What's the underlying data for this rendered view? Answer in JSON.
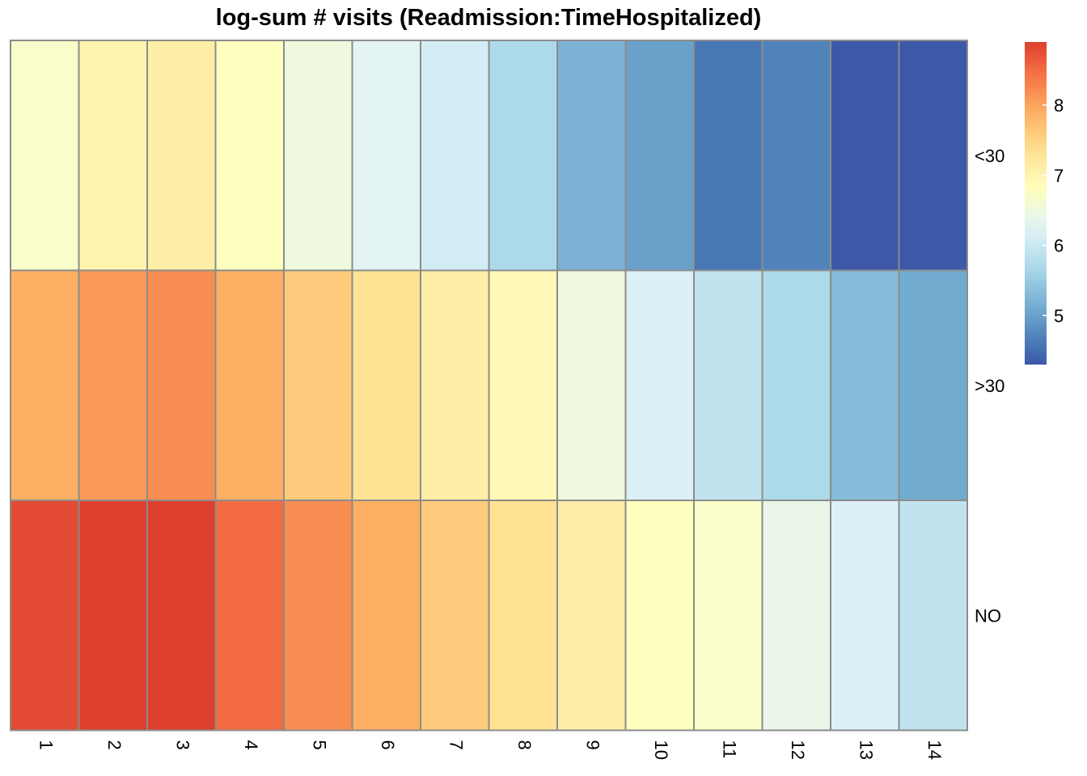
{
  "chart_data": {
    "type": "heatmap",
    "title": "log-sum # visits (Readmission:TimeHospitalized)",
    "columns": [
      "1",
      "2",
      "3",
      "4",
      "5",
      "6",
      "7",
      "8",
      "9",
      "10",
      "11",
      "12",
      "13",
      "14"
    ],
    "rows": [
      "<30",
      ">30",
      "NO"
    ],
    "values": [
      [
        6.7,
        7.0,
        7.1,
        6.8,
        6.5,
        6.3,
        6.1,
        5.7,
        5.2,
        5.0,
        4.6,
        4.7,
        4.3,
        4.3
      ],
      [
        7.9,
        8.1,
        8.2,
        7.9,
        7.6,
        7.3,
        7.1,
        6.9,
        6.5,
        6.2,
        5.9,
        5.7,
        5.3,
        5.1
      ],
      [
        8.8,
        8.9,
        8.9,
        8.5,
        8.2,
        7.9,
        7.6,
        7.3,
        7.1,
        6.8,
        6.7,
        6.4,
        6.2,
        5.9
      ]
    ],
    "colorbar": {
      "ticks": [
        "5",
        "6",
        "7",
        "8"
      ],
      "min": 4.3,
      "max": 8.9,
      "palette": [
        "#313695",
        "#4575B4",
        "#74ADD1",
        "#ABD9E9",
        "#E0F3F8",
        "#FFFFBF",
        "#FEE090",
        "#FDAE61",
        "#F46D43",
        "#D73027",
        "#A50026"
      ],
      "palette_range": [
        4.0,
        9.6
      ]
    },
    "grid_color": "#8c8c8c"
  }
}
